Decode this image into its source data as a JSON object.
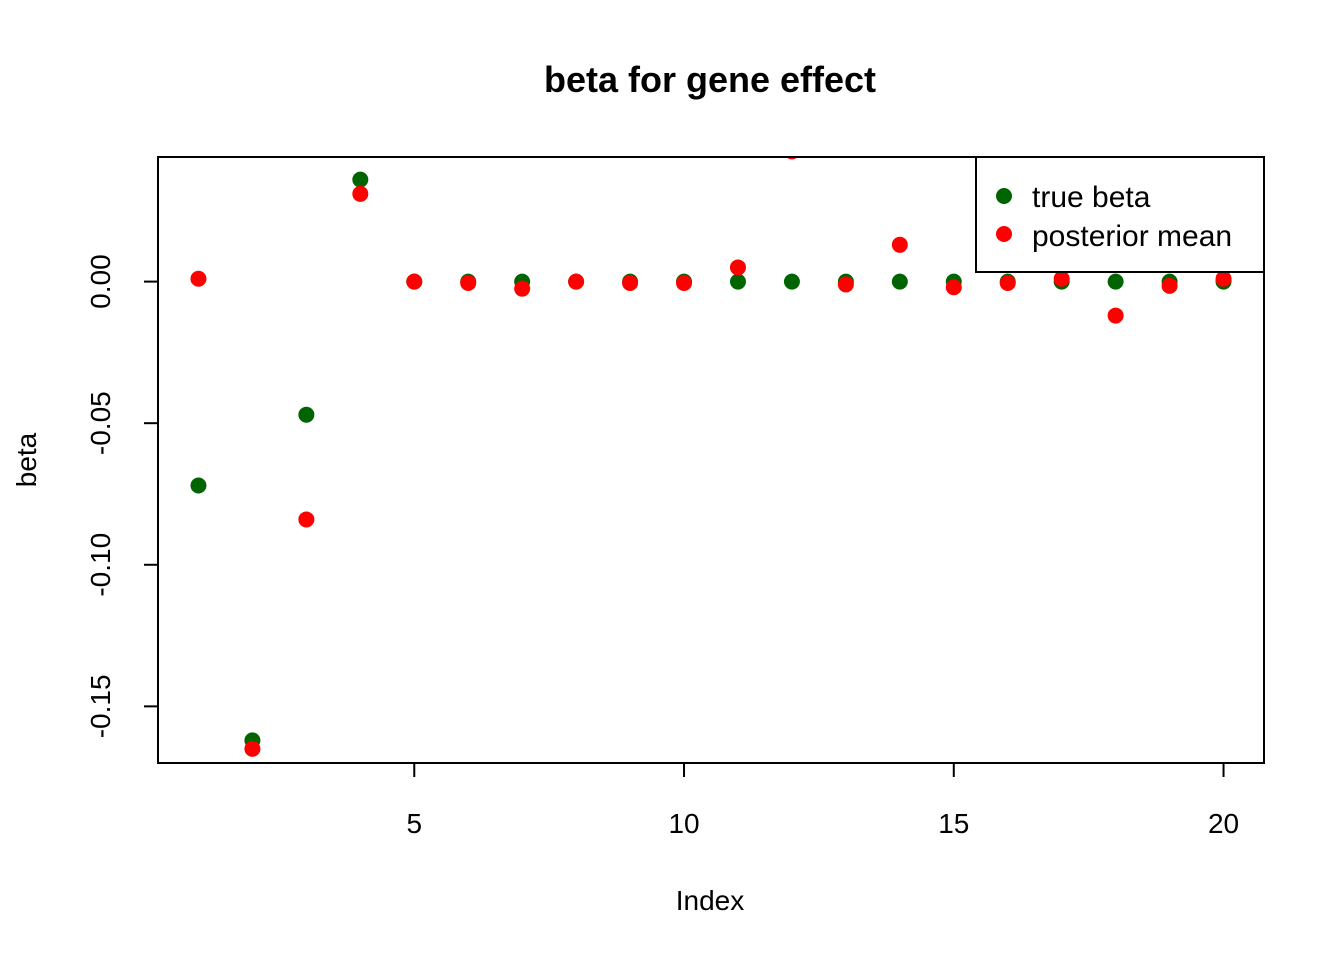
{
  "chart_data": {
    "type": "scatter",
    "title": "beta for gene effect",
    "xlabel": "Index",
    "ylabel": "beta",
    "xlim": [
      0.25,
      20.75
    ],
    "ylim": [
      -0.17,
      0.044
    ],
    "xticks": [
      5,
      10,
      15,
      20
    ],
    "xtick_labels": [
      "5",
      "10",
      "15",
      "20"
    ],
    "yticks": [
      -0.15,
      -0.1,
      -0.05,
      0.0
    ],
    "ytick_labels": [
      "-0.15",
      "-0.10",
      "-0.05",
      "0.00"
    ],
    "grid": false,
    "legend_position": "top-right",
    "series": [
      {
        "name": "true beta",
        "color": "#006400",
        "x": [
          1,
          2,
          3,
          4,
          5,
          6,
          7,
          8,
          9,
          10,
          11,
          12,
          13,
          14,
          15,
          16,
          17,
          18,
          19,
          20
        ],
        "values": [
          -0.072,
          -0.162,
          -0.047,
          0.036,
          0.0,
          0.0,
          0.0,
          0.0,
          0.0,
          0.0,
          0.0,
          0.0,
          0.0,
          0.0,
          0.0,
          0.0,
          0.0,
          0.0,
          0.0,
          0.0
        ]
      },
      {
        "name": "posterior mean",
        "color": "#ff0000",
        "x": [
          1,
          2,
          3,
          4,
          5,
          6,
          7,
          8,
          9,
          10,
          11,
          12,
          13,
          14,
          15,
          16,
          17,
          18,
          19,
          20
        ],
        "values": [
          0.001,
          -0.165,
          -0.084,
          0.031,
          0.0,
          -0.0005,
          -0.0025,
          0.0,
          -0.0005,
          -0.0005,
          0.005,
          0.046,
          -0.001,
          0.013,
          -0.002,
          -0.0005,
          0.001,
          -0.012,
          -0.0015,
          0.001
        ]
      }
    ]
  }
}
